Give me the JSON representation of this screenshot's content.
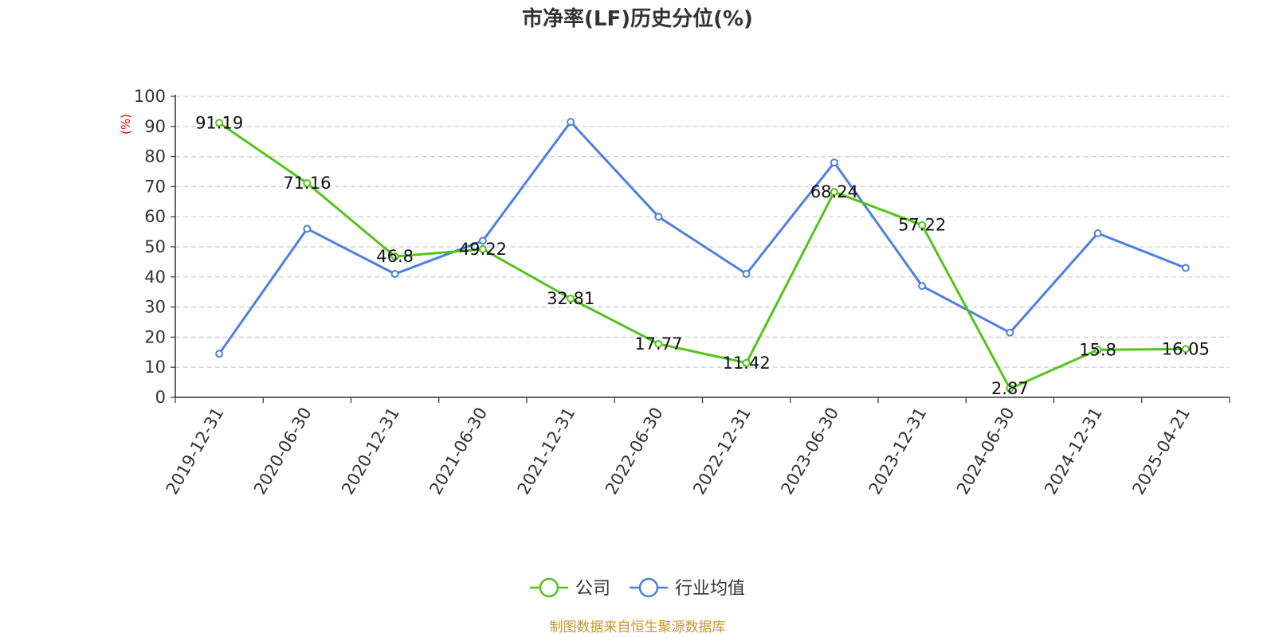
{
  "chart_data": {
    "type": "line",
    "title": "市净率(LF)历史分位(%)",
    "ylabel": "(%)",
    "ylim": [
      0,
      100
    ],
    "yticks": [
      "0",
      "10",
      "20",
      "30",
      "40",
      "50",
      "60",
      "70",
      "80",
      "90",
      "100"
    ],
    "grid": true,
    "legend_position": "bottom-center",
    "categories": [
      "2019-12-31",
      "2020-06-30",
      "2020-12-31",
      "2021-06-30",
      "2021-12-31",
      "2022-06-30",
      "2022-12-31",
      "2023-06-30",
      "2023-12-31",
      "2024-06-30",
      "2024-12-31",
      "2025-04-21"
    ],
    "series": [
      {
        "name": "公司",
        "color": "#52c41a",
        "values": [
          91.19,
          71.16,
          46.8,
          49.22,
          32.81,
          17.77,
          11.42,
          68.24,
          57.22,
          2.87,
          15.8,
          16.05
        ],
        "labels": [
          "91.19",
          "71.16",
          "46.8",
          "49.22",
          "32.81",
          "17.77",
          "11.42",
          "68.24",
          "57.22",
          "2.87",
          "15.8",
          "16.05"
        ]
      },
      {
        "name": "行业均值",
        "color": "#4e7fe0",
        "values": [
          14.5,
          56,
          41,
          52,
          91.5,
          60,
          41,
          78,
          37,
          21.5,
          54.5,
          43
        ]
      }
    ]
  },
  "unit_color": "#e00000",
  "source": {
    "text": "制图数据来自恒生聚源数据库",
    "color": "#c8962c"
  }
}
